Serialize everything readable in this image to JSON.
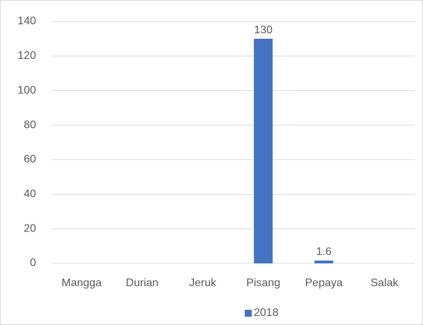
{
  "chart_data": {
    "type": "bar",
    "categories": [
      "Mangga",
      "Durian",
      "Jeruk",
      "Pisang",
      "Pepaya",
      "Salak"
    ],
    "series": [
      {
        "name": "2018",
        "color": "#4472c4",
        "values": [
          null,
          null,
          null,
          130,
          1.6,
          null
        ]
      }
    ],
    "ylim": [
      0,
      140
    ],
    "yticks": [
      0,
      20,
      40,
      60,
      80,
      100,
      120,
      140
    ],
    "grid": true,
    "legend": "bottom"
  }
}
